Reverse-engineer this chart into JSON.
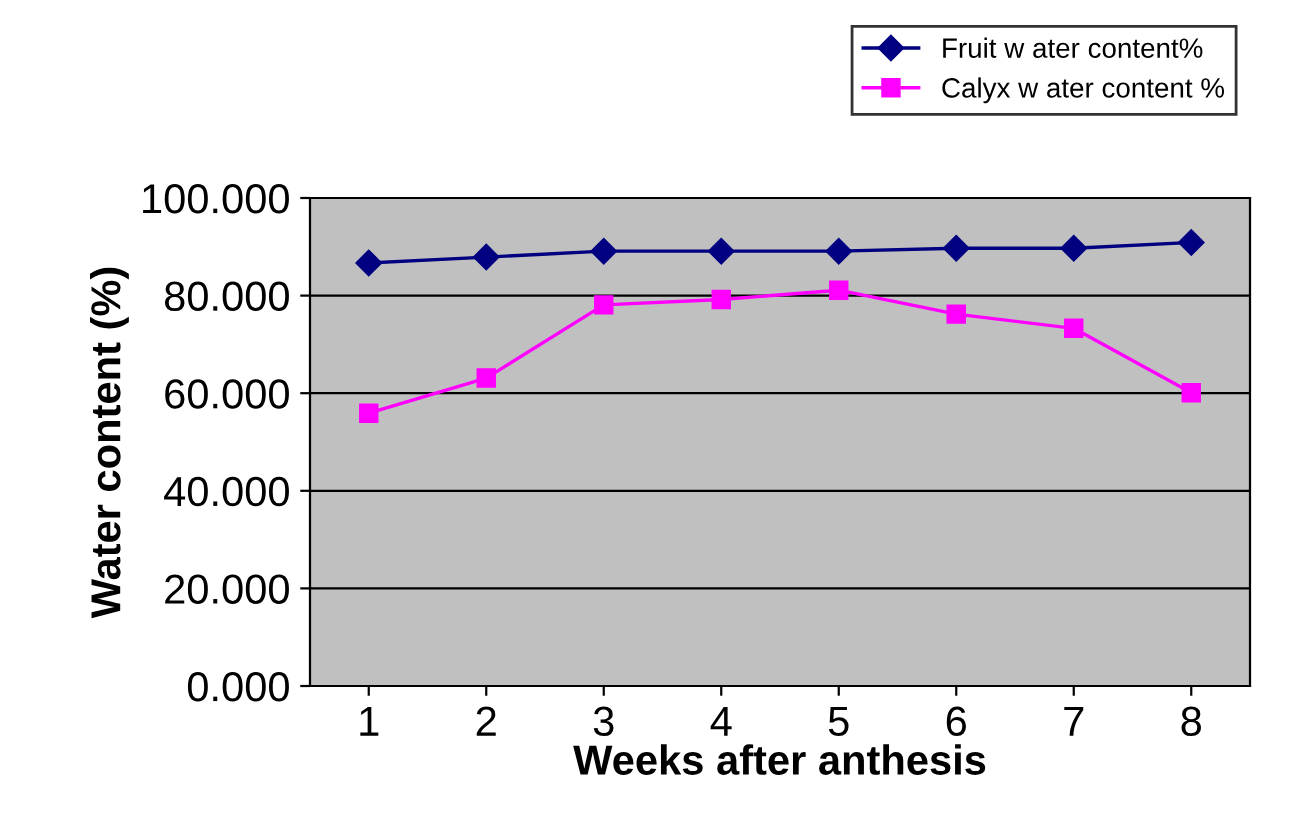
{
  "chart_data": {
    "type": "line",
    "xlabel": "Weeks after anthesis",
    "ylabel": "Water content (%)",
    "categories": [
      "1",
      "2",
      "3",
      "4",
      "5",
      "6",
      "7",
      "8"
    ],
    "series": [
      {
        "name": "Fruit w ater content%",
        "color": "#000080",
        "marker": "diamond",
        "values": [
          86.7,
          87.9,
          89.1,
          89.1,
          89.1,
          89.7,
          89.7,
          90.9
        ]
      },
      {
        "name": "Calyx w ater content %",
        "color": "#ff00ff",
        "marker": "square",
        "values": [
          55.9,
          63.1,
          78.1,
          79.2,
          81.1,
          76.2,
          73.3,
          60.1
        ]
      }
    ],
    "ylim": [
      0,
      100
    ],
    "yticks": [
      {
        "value": 0,
        "label": "0.000"
      },
      {
        "value": 20,
        "label": "20.000"
      },
      {
        "value": 40,
        "label": "40.000"
      },
      {
        "value": 60,
        "label": "60.000"
      },
      {
        "value": 80,
        "label": "80.000"
      },
      {
        "value": 100,
        "label": "100.000"
      }
    ],
    "grid": "y",
    "legend": "top right",
    "line_style": "solid"
  }
}
